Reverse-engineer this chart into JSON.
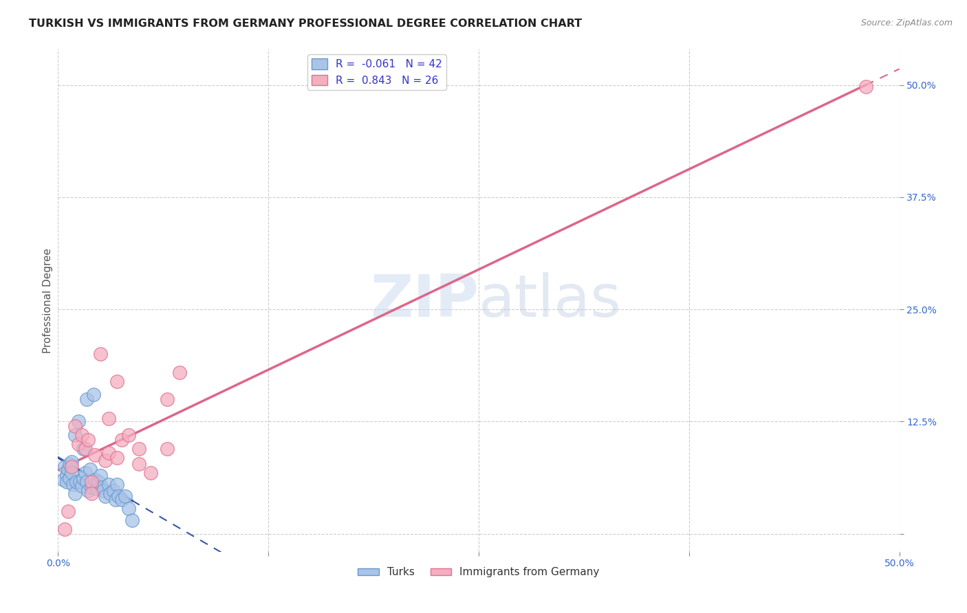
{
  "title": "TURKISH VS IMMIGRANTS FROM GERMANY PROFESSIONAL DEGREE CORRELATION CHART",
  "source": "Source: ZipAtlas.com",
  "ylabel": "Professional Degree",
  "xlim": [
    0.0,
    0.5
  ],
  "ylim": [
    -0.02,
    0.54
  ],
  "xticks": [
    0.0,
    0.125,
    0.25,
    0.375,
    0.5
  ],
  "xticklabels": [
    "0.0%",
    "",
    "",
    "",
    "50.0%"
  ],
  "ytick_right": [
    0.0,
    0.125,
    0.25,
    0.375,
    0.5
  ],
  "ytick_right_labels": [
    "",
    "12.5%",
    "25.0%",
    "37.5%",
    "50.0%"
  ],
  "grid_color": "#cccccc",
  "grid_style": "--",
  "background_color": "#ffffff",
  "watermark": "ZIPatlas",
  "turks_color": "#aac4e8",
  "turks_edge_color": "#6699cc",
  "germany_color": "#f4aec0",
  "germany_edge_color": "#e07090",
  "turks_R": -0.061,
  "turks_N": 42,
  "germany_R": 0.843,
  "germany_N": 26,
  "turks_line_color": "#3355aa",
  "germany_line_color": "#dd6688",
  "legend_label_turks": "Turks",
  "legend_label_germany": "Immigrants from Germany",
  "turks_x": [
    0.003,
    0.004,
    0.005,
    0.005,
    0.006,
    0.007,
    0.007,
    0.008,
    0.008,
    0.009,
    0.01,
    0.01,
    0.011,
    0.012,
    0.013,
    0.014,
    0.015,
    0.015,
    0.016,
    0.017,
    0.017,
    0.018,
    0.019,
    0.02,
    0.021,
    0.022,
    0.023,
    0.024,
    0.025,
    0.026,
    0.027,
    0.028,
    0.03,
    0.031,
    0.033,
    0.034,
    0.035,
    0.036,
    0.038,
    0.04,
    0.042,
    0.044
  ],
  "turks_y": [
    0.06,
    0.075,
    0.065,
    0.058,
    0.072,
    0.078,
    0.062,
    0.08,
    0.068,
    0.055,
    0.11,
    0.045,
    0.058,
    0.125,
    0.058,
    0.053,
    0.095,
    0.062,
    0.068,
    0.058,
    0.15,
    0.048,
    0.072,
    0.052,
    0.155,
    0.06,
    0.05,
    0.058,
    0.065,
    0.052,
    0.048,
    0.042,
    0.055,
    0.045,
    0.048,
    0.038,
    0.055,
    0.042,
    0.038,
    0.042,
    0.028,
    0.015
  ],
  "germany_x": [
    0.004,
    0.006,
    0.008,
    0.01,
    0.012,
    0.014,
    0.016,
    0.018,
    0.02,
    0.022,
    0.025,
    0.028,
    0.03,
    0.035,
    0.038,
    0.042,
    0.048,
    0.055,
    0.065,
    0.072,
    0.02,
    0.03,
    0.035,
    0.048,
    0.065,
    0.48
  ],
  "germany_y": [
    0.005,
    0.025,
    0.075,
    0.12,
    0.1,
    0.11,
    0.095,
    0.105,
    0.058,
    0.088,
    0.2,
    0.082,
    0.09,
    0.085,
    0.105,
    0.11,
    0.078,
    0.068,
    0.15,
    0.18,
    0.045,
    0.128,
    0.17,
    0.095,
    0.095,
    0.498
  ]
}
